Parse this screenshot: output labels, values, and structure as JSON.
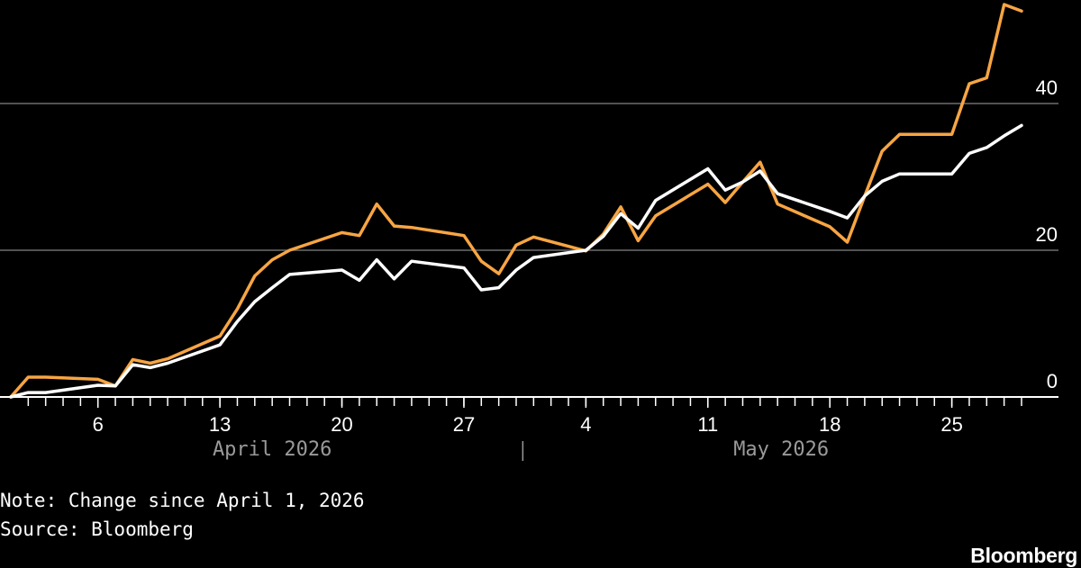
{
  "chart_data": {
    "type": "line",
    "title": "",
    "xlabel": "",
    "ylabel": "",
    "xlim": [
      "2026-04-01",
      "2026-05-29"
    ],
    "ylim": [
      0,
      50
    ],
    "grid": true,
    "y_axis_side": "right",
    "y_ticks": [
      0,
      20,
      40
    ],
    "x_ticks": [
      {
        "date": "2026-04-06",
        "label": "6"
      },
      {
        "date": "2026-04-13",
        "label": "13"
      },
      {
        "date": "2026-04-20",
        "label": "20"
      },
      {
        "date": "2026-04-27",
        "label": "27"
      },
      {
        "date": "2026-05-04",
        "label": "4"
      },
      {
        "date": "2026-05-11",
        "label": "11"
      },
      {
        "date": "2026-05-18",
        "label": "18"
      },
      {
        "date": "2026-05-25",
        "label": "25"
      }
    ],
    "month_labels": [
      "April 2026",
      "May 2026"
    ],
    "series": [
      {
        "color": "#f7a543",
        "points": [
          [
            "2026-04-01",
            0
          ],
          [
            "2026-04-02",
            2.7
          ],
          [
            "2026-04-03",
            2.7
          ],
          [
            "2026-04-06",
            2.4
          ],
          [
            "2026-04-07",
            1.5
          ],
          [
            "2026-04-08",
            5.1
          ],
          [
            "2026-04-09",
            4.6
          ],
          [
            "2026-04-10",
            5.2
          ],
          [
            "2026-04-13",
            8.3
          ],
          [
            "2026-04-14",
            12.0
          ],
          [
            "2026-04-15",
            16.5
          ],
          [
            "2026-04-16",
            18.7
          ],
          [
            "2026-04-17",
            20.0
          ],
          [
            "2026-04-20",
            22.4
          ],
          [
            "2026-04-21",
            22.0
          ],
          [
            "2026-04-22",
            26.3
          ],
          [
            "2026-04-23",
            23.3
          ],
          [
            "2026-04-24",
            23.1
          ],
          [
            "2026-04-27",
            22.0
          ],
          [
            "2026-04-28",
            18.5
          ],
          [
            "2026-04-29",
            16.8
          ],
          [
            "2026-04-30",
            20.7
          ],
          [
            "2026-05-01",
            21.8
          ],
          [
            "2026-05-04",
            19.9
          ],
          [
            "2026-05-05",
            22.2
          ],
          [
            "2026-05-06",
            25.9
          ],
          [
            "2026-05-07",
            21.3
          ],
          [
            "2026-05-08",
            24.7
          ],
          [
            "2026-05-11",
            29.0
          ],
          [
            "2026-05-12",
            26.5
          ],
          [
            "2026-05-13",
            29.3
          ],
          [
            "2026-05-14",
            32.0
          ],
          [
            "2026-05-15",
            26.3
          ],
          [
            "2026-05-18",
            23.2
          ],
          [
            "2026-05-19",
            21.1
          ],
          [
            "2026-05-20",
            27.4
          ],
          [
            "2026-05-21",
            33.5
          ],
          [
            "2026-05-22",
            35.8
          ],
          [
            "2026-05-25",
            35.8
          ],
          [
            "2026-05-26",
            42.7
          ],
          [
            "2026-05-27",
            43.5
          ],
          [
            "2026-05-28",
            53.5
          ],
          [
            "2026-05-29",
            52.6
          ]
        ]
      },
      {
        "color": "#ffffff",
        "points": [
          [
            "2026-04-01",
            0
          ],
          [
            "2026-04-02",
            0.6
          ],
          [
            "2026-04-03",
            0.6
          ],
          [
            "2026-04-06",
            1.6
          ],
          [
            "2026-04-07",
            1.5
          ],
          [
            "2026-04-08",
            4.4
          ],
          [
            "2026-04-09",
            4.0
          ],
          [
            "2026-04-10",
            4.6
          ],
          [
            "2026-04-13",
            7.1
          ],
          [
            "2026-04-14",
            10.3
          ],
          [
            "2026-04-15",
            13.0
          ],
          [
            "2026-04-16",
            14.9
          ],
          [
            "2026-04-17",
            16.7
          ],
          [
            "2026-04-20",
            17.3
          ],
          [
            "2026-04-21",
            15.9
          ],
          [
            "2026-04-22",
            18.7
          ],
          [
            "2026-04-23",
            16.1
          ],
          [
            "2026-04-24",
            18.5
          ],
          [
            "2026-04-27",
            17.6
          ],
          [
            "2026-04-28",
            14.6
          ],
          [
            "2026-04-29",
            14.9
          ],
          [
            "2026-04-30",
            17.3
          ],
          [
            "2026-05-01",
            19.0
          ],
          [
            "2026-05-04",
            20.0
          ],
          [
            "2026-05-05",
            21.9
          ],
          [
            "2026-05-06",
            25.0
          ],
          [
            "2026-05-07",
            23.0
          ],
          [
            "2026-05-08",
            26.8
          ],
          [
            "2026-05-11",
            31.1
          ],
          [
            "2026-05-12",
            28.2
          ],
          [
            "2026-05-13",
            29.3
          ],
          [
            "2026-05-14",
            30.8
          ],
          [
            "2026-05-15",
            27.7
          ],
          [
            "2026-05-18",
            25.3
          ],
          [
            "2026-05-19",
            24.4
          ],
          [
            "2026-05-20",
            27.4
          ],
          [
            "2026-05-21",
            29.4
          ],
          [
            "2026-05-22",
            30.4
          ],
          [
            "2026-05-25",
            30.4
          ],
          [
            "2026-05-26",
            33.2
          ],
          [
            "2026-05-27",
            34.0
          ],
          [
            "2026-05-28",
            35.6
          ],
          [
            "2026-05-29",
            37.0
          ]
        ]
      }
    ]
  },
  "footer": {
    "note": "Note: Change since April 1, 2026",
    "source": "Source: Bloomberg",
    "brand": "Bloomberg"
  },
  "colors": {
    "background": "#000000",
    "gridline": "#6e6e6e",
    "axis": "#ffffff",
    "month_label": "#9a9a9a"
  }
}
